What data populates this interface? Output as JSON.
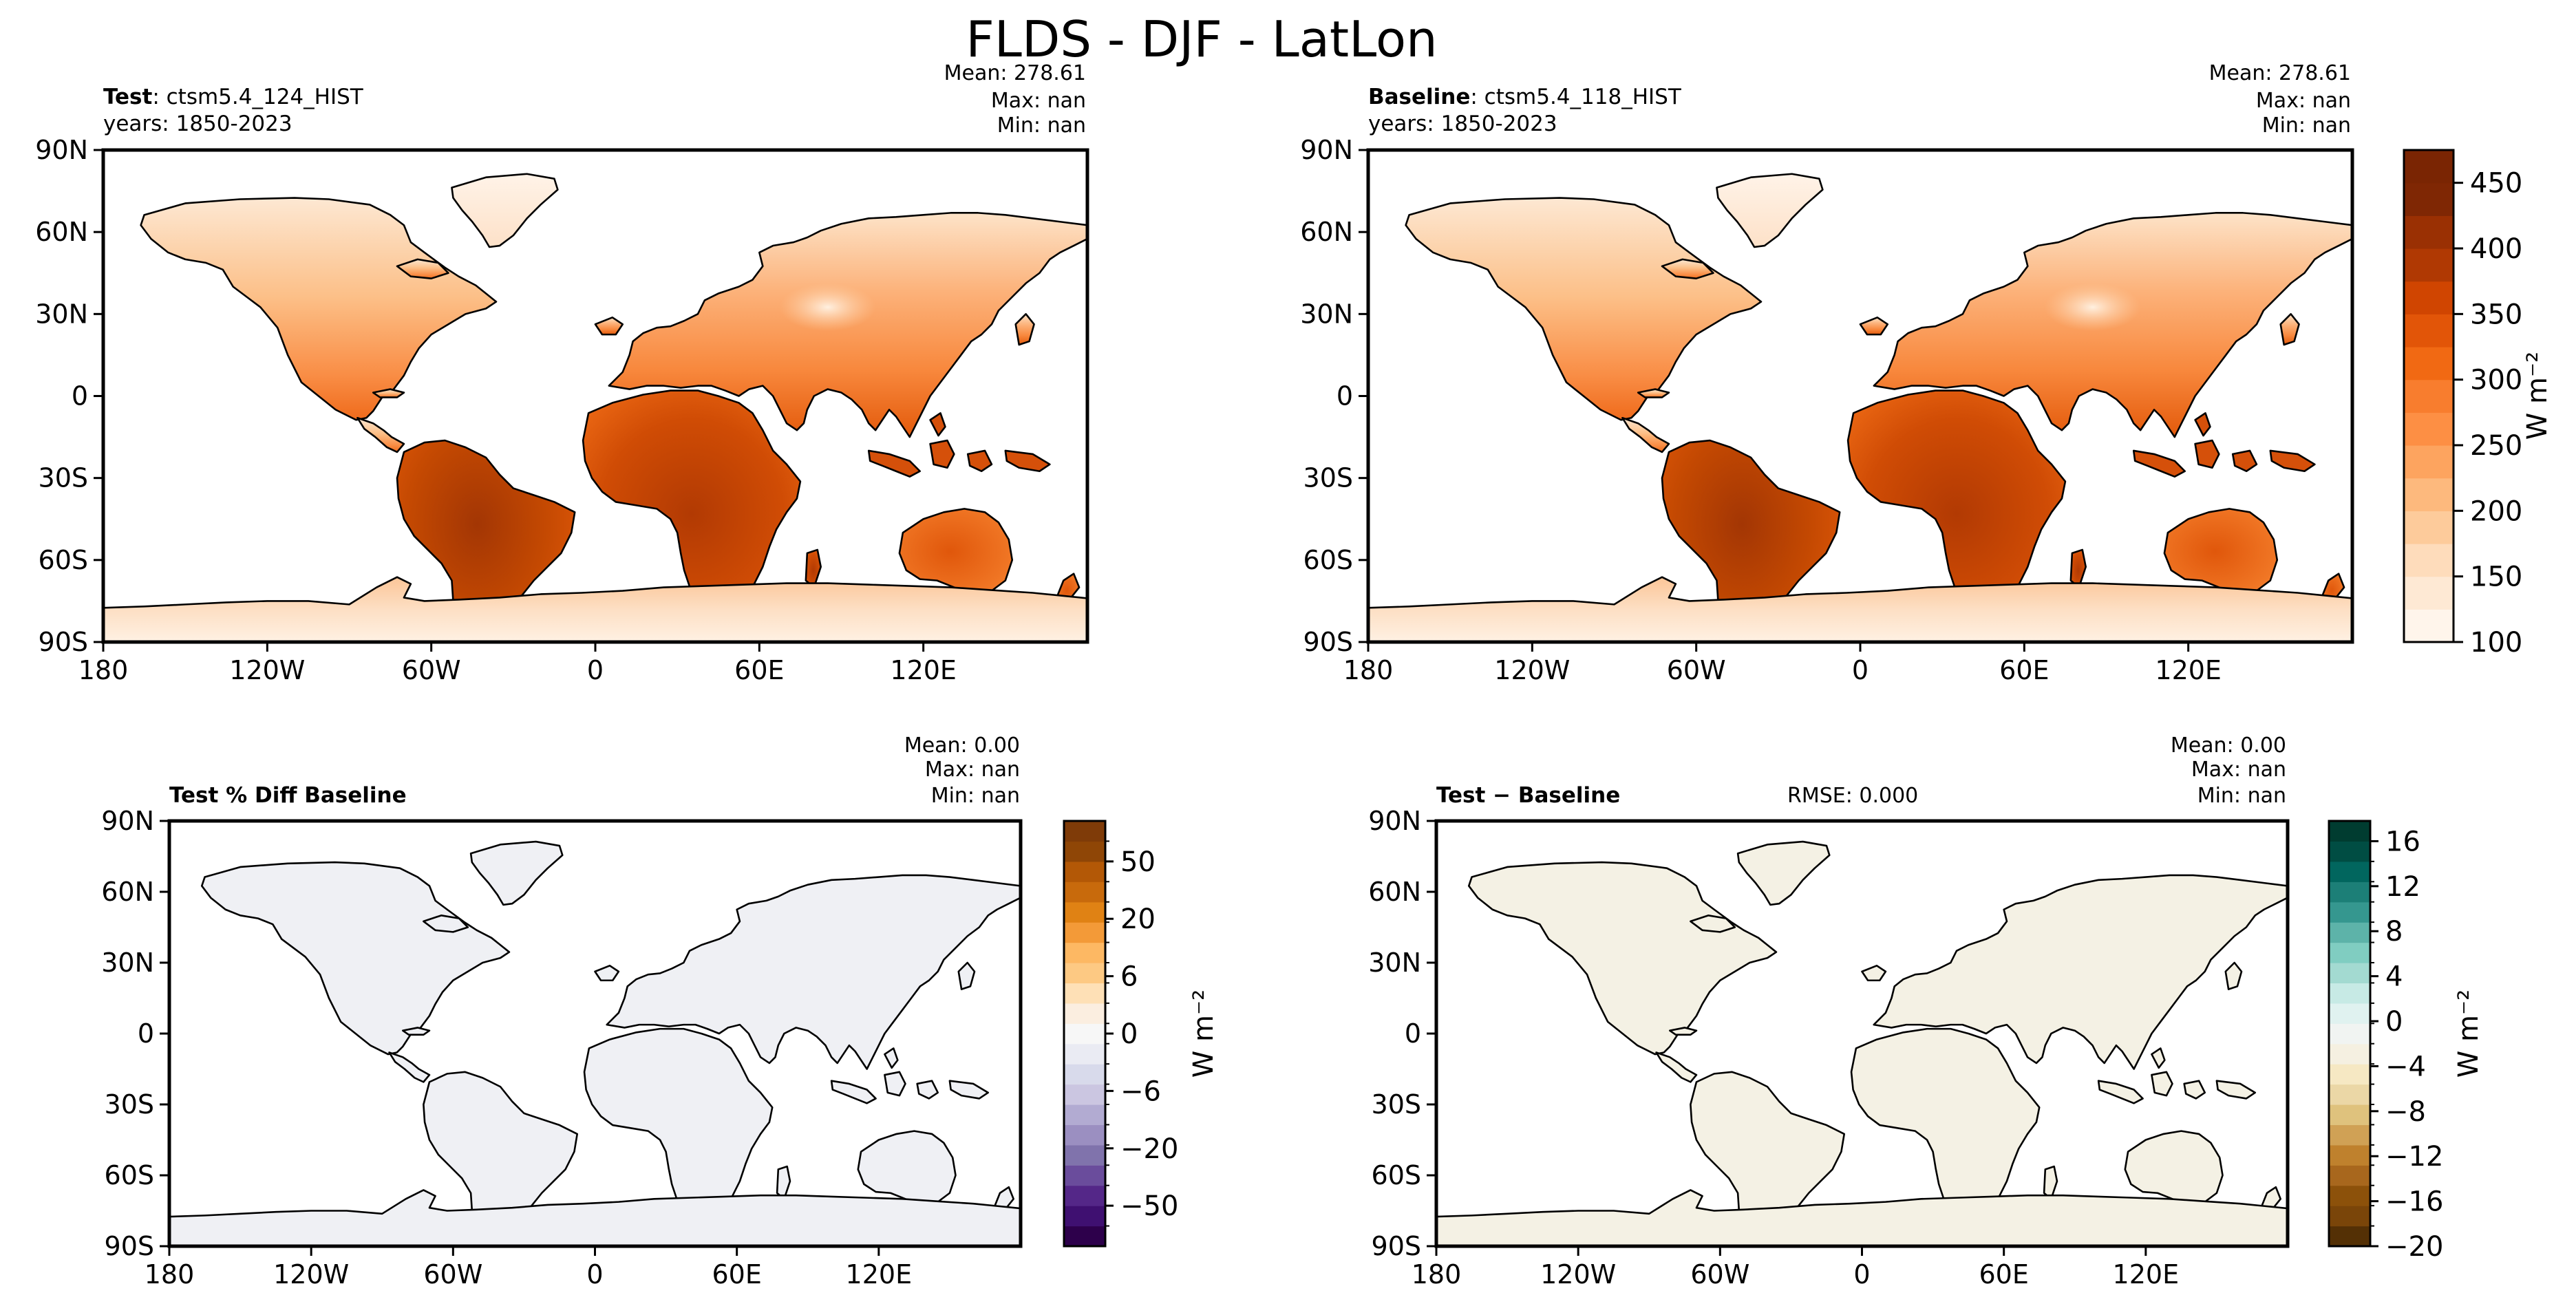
{
  "figure": {
    "title": "FLDS - DJF - LatLon"
  },
  "lat_ticks": [
    "90N",
    "60N",
    "30N",
    "0",
    "30S",
    "60S",
    "90S"
  ],
  "lon_ticks": [
    "180",
    "120W",
    "60W",
    "0",
    "60E",
    "120E"
  ],
  "panels": [
    {
      "id": "test",
      "name_bold": "Test",
      "name_rest": ": ctsm5.4_124_HIST",
      "years": "years: 1850-2023",
      "mean": "Mean: 278.61",
      "max": "Max:   nan",
      "min": "Min:   nan",
      "rmse": ""
    },
    {
      "id": "baseline",
      "name_bold": "Baseline",
      "name_rest": ": ctsm5.4_118_HIST",
      "years": "years: 1850-2023",
      "mean": "Mean: 278.61",
      "max": "Max:   nan",
      "min": "Min:   nan",
      "rmse": ""
    },
    {
      "id": "pctdiff",
      "name_bold": "Test % Diff Baseline",
      "name_rest": "",
      "years": "",
      "mean": "Mean:  0.00",
      "max": "Max:   nan",
      "min": "Min:   nan",
      "rmse": ""
    },
    {
      "id": "diff",
      "name_bold": "Test − Baseline",
      "name_rest": "",
      "years": "",
      "mean": "Mean:  0.00",
      "max": "Max:   nan",
      "min": "Min:   nan",
      "rmse": "RMSE: 0.000"
    }
  ],
  "colorbars": [
    {
      "id": "abs",
      "label": "W m⁻²",
      "min": 100,
      "max": 475,
      "ticks": [
        "100",
        "150",
        "200",
        "250",
        "300",
        "350",
        "400",
        "450"
      ],
      "tick_values": [
        100,
        150,
        200,
        250,
        300,
        350,
        400,
        450
      ],
      "colors": [
        "#fff5eb",
        "#fee9d4",
        "#fedcbb",
        "#fdcb9b",
        "#fdb97d",
        "#fda45f",
        "#fd8f44",
        "#f87d2e",
        "#f16913",
        "#e25508",
        "#d04501",
        "#b03903",
        "#9a3003",
        "#7f2704",
        "#7a2503"
      ]
    },
    {
      "id": "pct",
      "label": "W m⁻²",
      "ticks": [
        "50",
        "20",
        "6",
        "0",
        "−6",
        "−20",
        "−50"
      ],
      "colors": [
        "#2d004b",
        "#3f1071",
        "#542788",
        "#6a4c9c",
        "#8073ac",
        "#9b8fc1",
        "#b2abd2",
        "#cbc6e1",
        "#d8daeb",
        "#eaebf3",
        "#f7f7f7",
        "#fbeee0",
        "#fee0b6",
        "#fdc983",
        "#fdb863",
        "#f39a38",
        "#e08214",
        "#c86a0c",
        "#b35806",
        "#8f4606",
        "#7f3b08"
      ]
    },
    {
      "id": "diff",
      "label": "W m⁻²",
      "ticks": [
        "16",
        "12",
        "8",
        "4",
        "0",
        "−4",
        "−8",
        "−12",
        "−16",
        "−20"
      ],
      "colors": [
        "#543005",
        "#7a4509",
        "#8c510a",
        "#a8671d",
        "#bf812d",
        "#d0a155",
        "#dfc27d",
        "#ebd7a6",
        "#f6e8c3",
        "#f5f0e1",
        "#f1f4f2",
        "#e0f2f0",
        "#c7eae5",
        "#a3dad1",
        "#80cdc1",
        "#5db3a9",
        "#35978f",
        "#1c7f77",
        "#01665e",
        "#004d43",
        "#003c30"
      ]
    }
  ],
  "colors": {
    "diff_fill": "#f4f1e4",
    "pctdiff_fill": "#eff0f4",
    "land_mid": "#f9a262"
  }
}
